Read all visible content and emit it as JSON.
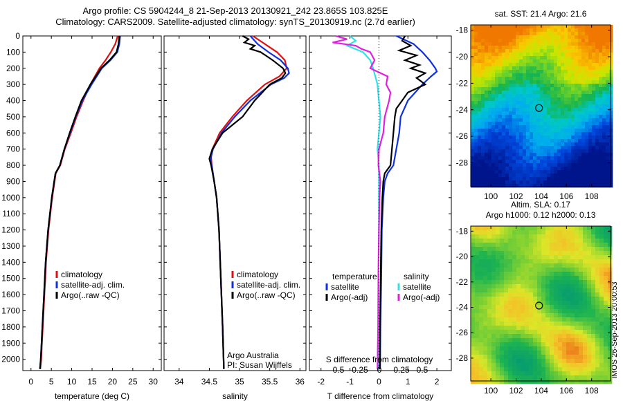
{
  "header": {
    "line1": "Argo profile: CS 5904244_8 21-Sep-2013 20130921_242 23.865S 103.825E",
    "line2": "Climatology: CARS2009. Satellite-adjusted climatology: synTS_20130919.nc (2.7d earlier)"
  },
  "side_label": "IMOS 26-Sep-2013 20:00:53",
  "colors": {
    "climatology": "#e01010",
    "satellite": "#1030e0",
    "argo": "#000000",
    "sal_sat": "#30e0e8",
    "sal_argo": "#e020e0"
  },
  "depth_ticks": [
    0,
    100,
    200,
    300,
    400,
    500,
    600,
    700,
    800,
    900,
    1000,
    1100,
    1200,
    1300,
    1400,
    1500,
    1600,
    1700,
    1800,
    1900,
    2000
  ],
  "chart_data": [
    {
      "type": "line",
      "xlabel": "temperature (deg C)",
      "xlim": [
        -2,
        32
      ],
      "ylim": [
        2070,
        0
      ],
      "xticks": [
        "0",
        "5",
        "10",
        "15",
        "20",
        "25",
        "30"
      ],
      "xtick_values": [
        0,
        5,
        10,
        15,
        20,
        25,
        30
      ],
      "legend": [
        "climatology",
        "satellite-adj. clim.",
        "Argo(..raw -QC)"
      ],
      "series": [
        {
          "name": "climatology",
          "color_key": "climatology",
          "depth": [
            0,
            50,
            100,
            150,
            200,
            300,
            400,
            500,
            600,
            700,
            800,
            850,
            900,
            1000,
            1200,
            1400,
            1600,
            1800,
            2000,
            2060
          ],
          "values": [
            21.3,
            20.7,
            19.6,
            18.3,
            16.8,
            14.6,
            12.8,
            11.2,
            9.8,
            8.3,
            7.2,
            6.1,
            5.8,
            5.2,
            4.3,
            3.7,
            3.3,
            2.9,
            2.5,
            2.3
          ]
        },
        {
          "name": "satellite-adj. clim.",
          "color_key": "satellite",
          "depth": [
            0,
            50,
            100,
            150,
            200,
            300,
            400,
            500,
            600,
            700,
            800,
            850,
            900,
            1000,
            1200,
            1400,
            1600,
            1800,
            2000,
            2060
          ],
          "values": [
            21.9,
            21.7,
            21.2,
            19.5,
            17.4,
            14.9,
            12.6,
            11.0,
            9.6,
            8.2,
            7.1,
            6.0,
            5.7,
            5.1,
            4.2,
            3.6,
            3.2,
            2.8,
            2.4,
            2.2
          ]
        },
        {
          "name": "Argo(..raw -QC)",
          "color_key": "argo",
          "depth": [
            0,
            50,
            100,
            150,
            200,
            300,
            400,
            500,
            600,
            700,
            800,
            850,
            900,
            1000,
            1200,
            1400,
            1600,
            1800,
            2000,
            2060
          ],
          "values": [
            21.7,
            21.5,
            21.0,
            19.3,
            17.2,
            14.6,
            12.4,
            10.9,
            9.5,
            8.2,
            7.1,
            6.0,
            5.7,
            5.1,
            4.2,
            3.6,
            3.2,
            2.8,
            2.4,
            2.2
          ]
        }
      ]
    },
    {
      "type": "line",
      "xlabel": "salinity",
      "xlim": [
        33.75,
        36.1
      ],
      "ylim": [
        2070,
        0
      ],
      "xticks": [
        "34",
        "34.5",
        "35",
        "35.5",
        "36"
      ],
      "xtick_values": [
        34,
        34.5,
        35,
        35.5,
        36
      ],
      "legend": [
        "climatology",
        "satellite-adj. clim.",
        "Argo(..raw -QC)"
      ],
      "credits": [
        "Argo Australia",
        "PI: Susan Wijffels"
      ],
      "series": [
        {
          "name": "climatology",
          "color_key": "climatology",
          "depth": [
            0,
            50,
            100,
            150,
            200,
            250,
            300,
            400,
            500,
            600,
            700,
            750,
            800,
            900,
            1000,
            1200,
            1500,
            1800,
            2060
          ],
          "values": [
            35.22,
            35.42,
            35.62,
            35.75,
            35.78,
            35.66,
            35.42,
            35.12,
            34.88,
            34.67,
            34.55,
            34.53,
            34.54,
            34.58,
            34.62,
            34.66,
            34.69,
            34.72,
            34.74
          ]
        },
        {
          "name": "satellite-adj. clim.",
          "color_key": "satellite",
          "depth": [
            0,
            50,
            100,
            150,
            200,
            230,
            260,
            300,
            400,
            500,
            600,
            700,
            760,
            800,
            900,
            1000,
            1200,
            1500,
            1800,
            2060
          ],
          "values": [
            35.18,
            35.3,
            35.48,
            35.68,
            35.8,
            35.82,
            35.74,
            35.52,
            35.18,
            34.92,
            34.7,
            34.56,
            34.52,
            34.54,
            34.58,
            34.62,
            34.66,
            34.69,
            34.72,
            34.74
          ]
        },
        {
          "name": "Argo(..raw -QC)",
          "color_key": "argo",
          "depth": [
            0,
            20,
            40,
            60,
            80,
            100,
            150,
            200,
            230,
            260,
            300,
            400,
            500,
            600,
            700,
            760,
            800,
            900,
            1000,
            1200,
            1500,
            1800,
            2060
          ],
          "values": [
            35.05,
            35.15,
            35.08,
            35.25,
            35.18,
            35.35,
            35.55,
            35.72,
            35.76,
            35.7,
            35.5,
            35.25,
            35.05,
            34.72,
            34.55,
            34.5,
            34.53,
            34.58,
            34.62,
            34.66,
            34.69,
            34.72,
            34.74
          ]
        }
      ]
    },
    {
      "type": "line",
      "xlabel": "T difference from climatology",
      "xlabel_top": "S difference from climatology",
      "xlim": [
        -2.4,
        2.5
      ],
      "ylim": [
        2070,
        0
      ],
      "xticks": [
        "-2",
        "-1",
        "0",
        "1",
        "2"
      ],
      "xtick_values": [
        -2,
        -1,
        0,
        1,
        2
      ],
      "sticks": [
        "-0.5",
        "-0.25",
        "0",
        "0.25",
        "0.5"
      ],
      "legend_left_title": "temperature",
      "legend_right_title": "salinity",
      "legend_left": [
        "satellite",
        "Argo(-adj)"
      ],
      "legend_right": [
        "satellite",
        "Argo(-adj)"
      ],
      "series": [
        {
          "name": "satellite",
          "color_key": "satellite",
          "depth": [
            0,
            50,
            100,
            150,
            200,
            220,
            250,
            300,
            400,
            500,
            600,
            700,
            800,
            850,
            900,
            1000,
            1200,
            1500,
            1800,
            2060
          ],
          "values": [
            0.6,
            1.2,
            1.5,
            1.75,
            1.95,
            2.0,
            1.8,
            1.5,
            1.0,
            0.75,
            0.7,
            0.6,
            0.5,
            0.3,
            0.2,
            0.15,
            0.1,
            0.08,
            0.05,
            0.04
          ]
        },
        {
          "name": "Argo(-adj)",
          "color_key": "argo",
          "depth": [
            0,
            30,
            60,
            90,
            120,
            150,
            180,
            200,
            230,
            260,
            300,
            350,
            400,
            450,
            500,
            600,
            700,
            800,
            850,
            900,
            1000,
            1200,
            1500,
            1800,
            2060
          ],
          "values": [
            0.9,
            0.8,
            1.1,
            0.7,
            1.3,
            0.9,
            1.4,
            1.1,
            1.6,
            1.3,
            1.6,
            1.0,
            0.8,
            0.6,
            0.55,
            0.5,
            0.45,
            0.4,
            0.2,
            0.15,
            0.12,
            0.08,
            0.06,
            0.04,
            0.03
          ]
        },
        {
          "name": "salinity satellite",
          "color_key": "sal_sat",
          "depth": [
            0,
            30,
            60,
            100,
            150,
            200,
            300,
            400,
            500,
            600,
            700,
            800,
            1000,
            1200,
            1500,
            1800,
            2060
          ],
          "values": [
            -1.0,
            -0.8,
            -1.1,
            -0.55,
            -0.3,
            -0.2,
            -0.05,
            0.0,
            0.05,
            0.0,
            -0.05,
            0.0,
            0.0,
            0.0,
            -0.02,
            -0.02,
            -0.03
          ]
        },
        {
          "name": "salinity Argo(-adj)",
          "color_key": "sal_argo",
          "depth": [
            0,
            20,
            40,
            60,
            80,
            100,
            150,
            200,
            250,
            300,
            350,
            400,
            500,
            600,
            700,
            800,
            900,
            1000,
            1200,
            1500,
            1800,
            2060
          ],
          "values": [
            -1.5,
            -1.1,
            -1.6,
            -0.8,
            -0.6,
            -0.3,
            -0.15,
            -0.3,
            0.3,
            0.25,
            0.4,
            0.35,
            0.2,
            0.15,
            0.0,
            -0.02,
            0.05,
            0.02,
            0.0,
            -0.02,
            -0.03,
            -0.05
          ]
        }
      ]
    },
    {
      "type": "heatmap",
      "title": "sat. SST: 21.4  Argo: 21.6",
      "xticks": [
        "100",
        "102",
        "104",
        "106",
        "108"
      ],
      "yticks": [
        "-18",
        "-20",
        "-22",
        "-24",
        "-26",
        "-28"
      ],
      "xtick_values": [
        100,
        102,
        104,
        106,
        108
      ],
      "ytick_values": [
        -18,
        -20,
        -22,
        -24,
        -26,
        -28
      ],
      "xlim": [
        98.4,
        109.5
      ],
      "ylim": [
        -29.8,
        -17.6
      ],
      "marker": [
        103.825,
        -23.865
      ]
    },
    {
      "type": "heatmap",
      "title_line1": "Altim. SLA: 0.17",
      "title_line2": "Argo h1000: 0.12 h2000: 0.13",
      "xticks": [
        "100",
        "102",
        "104",
        "106",
        "108"
      ],
      "yticks": [
        "-18",
        "-20",
        "-22",
        "-24",
        "-26",
        "-28"
      ],
      "xtick_values": [
        100,
        102,
        104,
        106,
        108
      ],
      "ytick_values": [
        -18,
        -20,
        -22,
        -24,
        -26,
        -28
      ],
      "xlim": [
        98.4,
        109.5
      ],
      "ylim": [
        -29.8,
        -17.6
      ],
      "marker": [
        103.825,
        -23.865
      ]
    }
  ]
}
